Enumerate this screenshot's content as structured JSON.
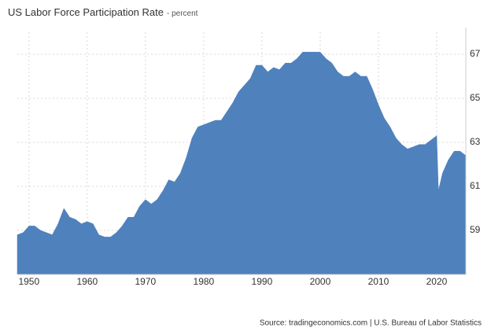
{
  "chart_data": {
    "type": "area",
    "title": "US Labor Force Participation Rate",
    "subtitle": "- percent",
    "source": "Source: tradingeconomics.com | U.S. Bureau of Labor Statistics",
    "x": [
      1948,
      1949,
      1950,
      1951,
      1952,
      1953,
      1954,
      1955,
      1956,
      1957,
      1958,
      1959,
      1960,
      1961,
      1962,
      1963,
      1964,
      1965,
      1966,
      1967,
      1968,
      1969,
      1970,
      1971,
      1972,
      1973,
      1974,
      1975,
      1976,
      1977,
      1978,
      1979,
      1980,
      1981,
      1982,
      1983,
      1984,
      1985,
      1986,
      1987,
      1988,
      1989,
      1990,
      1991,
      1992,
      1993,
      1994,
      1995,
      1996,
      1997,
      1998,
      1999,
      2000,
      2001,
      2002,
      2003,
      2004,
      2005,
      2006,
      2007,
      2008,
      2009,
      2010,
      2011,
      2012,
      2013,
      2014,
      2015,
      2016,
      2017,
      2018,
      2019,
      2020,
      2020.3,
      2021,
      2022,
      2023,
      2024,
      2025
    ],
    "values": [
      58.8,
      58.9,
      59.2,
      59.2,
      59.0,
      58.9,
      58.8,
      59.3,
      60.0,
      59.6,
      59.5,
      59.3,
      59.4,
      59.3,
      58.8,
      58.7,
      58.7,
      58.9,
      59.2,
      59.6,
      59.6,
      60.1,
      60.4,
      60.2,
      60.4,
      60.8,
      61.3,
      61.2,
      61.6,
      62.3,
      63.2,
      63.7,
      63.8,
      63.9,
      64.0,
      64.0,
      64.4,
      64.8,
      65.3,
      65.6,
      65.9,
      66.5,
      66.5,
      66.2,
      66.4,
      66.3,
      66.6,
      66.6,
      66.8,
      67.1,
      67.1,
      67.1,
      67.1,
      66.8,
      66.6,
      66.2,
      66.0,
      66.0,
      66.2,
      66.0,
      66.0,
      65.4,
      64.7,
      64.1,
      63.7,
      63.2,
      62.9,
      62.7,
      62.8,
      62.9,
      62.9,
      63.1,
      63.3,
      60.8,
      61.6,
      62.2,
      62.6,
      62.6,
      62.4
    ],
    "color": "#4f81bd",
    "xlim": [
      1948,
      2025
    ],
    "xticks": [
      1950,
      1960,
      1970,
      1980,
      1990,
      2000,
      2010,
      2020
    ],
    "ylim": [
      57,
      68
    ],
    "yticks": [
      59,
      61,
      63,
      65,
      67
    ],
    "grid": true
  }
}
